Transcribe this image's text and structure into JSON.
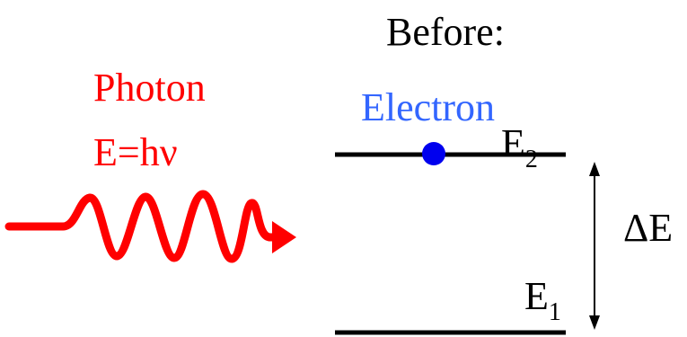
{
  "title": "Before:",
  "photon": {
    "label": "Photon",
    "energy": "E=hν",
    "color": "#ff0000"
  },
  "electron": {
    "label": "Electron",
    "color": "#3366ff",
    "dot_color": "#0000ee"
  },
  "levels": {
    "upper": {
      "symbol": "E",
      "subscript": "2"
    },
    "lower": {
      "symbol": "E",
      "subscript": "1"
    }
  },
  "gap_label": "ΔE",
  "line_color": "#000000"
}
